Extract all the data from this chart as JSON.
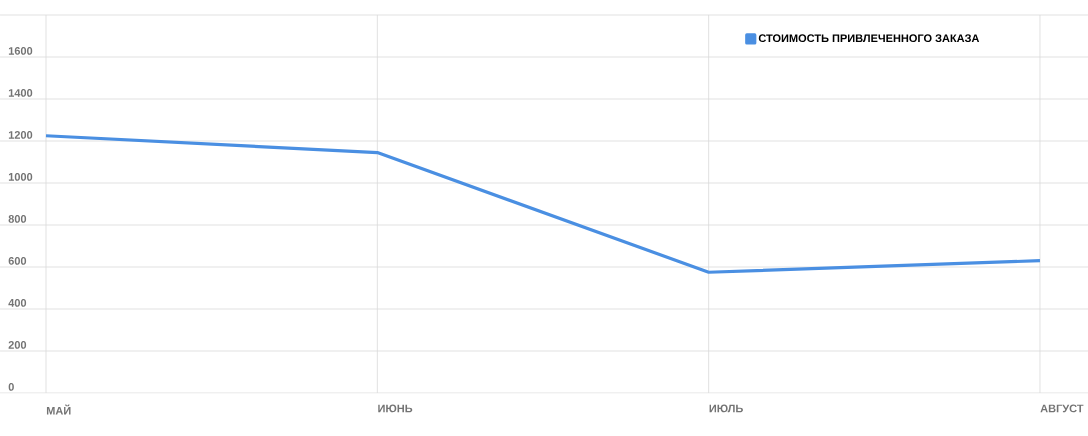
{
  "chart_data": {
    "type": "line",
    "categories": [
      "МАЙ",
      "ИЮНЬ",
      "ИЮЛЬ",
      "АВГУСТ"
    ],
    "series": [
      {
        "name": "СТОИМОСТЬ ПРИВЛЕЧЕННОГО ЗАКАЗА",
        "color": "#4a8fe2",
        "values": [
          1225,
          1145,
          575,
          630
        ]
      }
    ],
    "ylim": [
      0,
      1800
    ],
    "yticks": [
      0,
      200,
      400,
      600,
      800,
      1000,
      1200,
      1400,
      1600,
      {
        "value": 1800,
        "label": null
      }
    ],
    "grid": true,
    "legend": "top right",
    "marker": "none",
    "line_style": "solid"
  }
}
